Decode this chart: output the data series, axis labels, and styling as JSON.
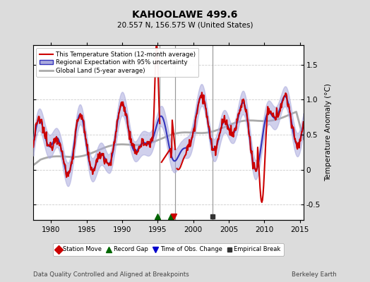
{
  "title": "KAHOOLAWE 499.6",
  "subtitle": "20.557 N, 156.575 W (United States)",
  "ylabel": "Temperature Anomaly (°C)",
  "xlabel_bottom_left": "Data Quality Controlled and Aligned at Breakpoints",
  "xlabel_bottom_right": "Berkeley Earth",
  "xlim": [
    1977.5,
    2015.5
  ],
  "ylim": [
    -0.72,
    1.78
  ],
  "yticks": [
    -0.5,
    0,
    0.5,
    1.0,
    1.5
  ],
  "xticks": [
    1980,
    1985,
    1990,
    1995,
    2000,
    2005,
    2010,
    2015
  ],
  "background_color": "#dcdcdc",
  "plot_bg_color": "#ffffff",
  "vertical_lines": [
    1995.25,
    1997.5,
    2002.7
  ],
  "vline_color": "#999999",
  "grid_color": "#cccccc",
  "legend_items": [
    {
      "label": "This Temperature Station (12-month average)",
      "color": "#cc0000",
      "lw": 1.5
    },
    {
      "label": "Regional Expectation with 95% uncertainty",
      "color": "#3333bb",
      "lw": 1.5
    },
    {
      "label": "Global Land (5-year average)",
      "color": "#aaaaaa",
      "lw": 2.0
    }
  ],
  "uncertainty_color": "#aaaadd",
  "uncertainty_alpha": 0.55,
  "marker_events": [
    {
      "x": 1995.0,
      "marker": "^",
      "color": "#006600",
      "ms": 6
    },
    {
      "x": 1996.9,
      "marker": "^",
      "color": "#006600",
      "ms": 6
    },
    {
      "x": 1997.3,
      "marker": "v",
      "color": "#cc0000",
      "ms": 6
    },
    {
      "x": 2002.7,
      "marker": "s",
      "color": "#333333",
      "ms": 5
    }
  ],
  "legend_markers": [
    {
      "label": "Station Move",
      "color": "#cc0000",
      "marker": "D",
      "ms": 6
    },
    {
      "label": "Record Gap",
      "color": "#006600",
      "marker": "^",
      "ms": 6
    },
    {
      "label": "Time of Obs. Change",
      "color": "#0000cc",
      "marker": "v",
      "ms": 6
    },
    {
      "label": "Empirical Break",
      "color": "#333333",
      "marker": "s",
      "ms": 5
    }
  ]
}
